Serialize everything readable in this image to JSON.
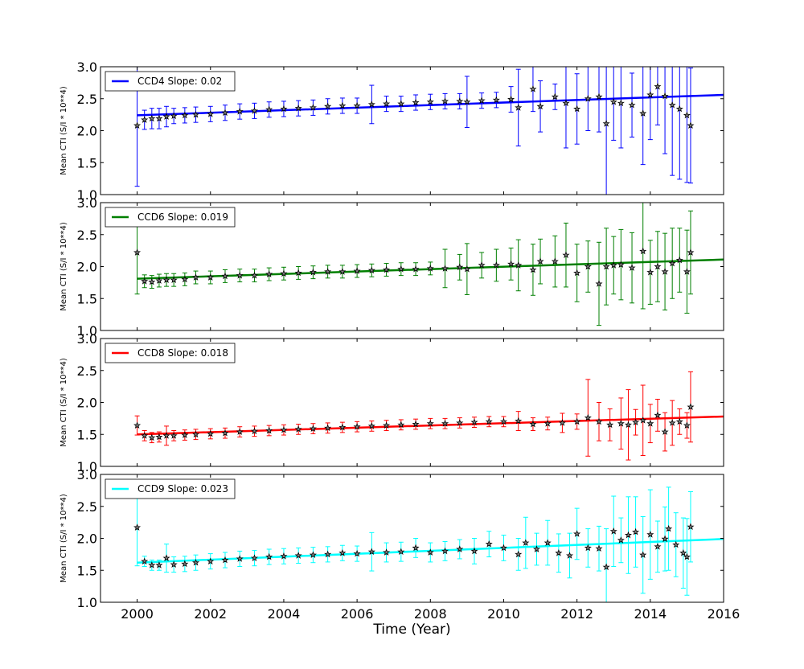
{
  "chart_data": {
    "type": "scatter",
    "x_label": "Time (Year)",
    "x_ticks": [
      2000,
      2002,
      2004,
      2006,
      2008,
      2010,
      2012,
      2014,
      2016
    ],
    "xlim": [
      1999,
      2016
    ],
    "panels": [
      {
        "ylabel": "Mean CTI (S/I * 10**4)",
        "ylim": [
          1.0,
          3.0
        ],
        "y_ticks": [
          "1.0",
          "1.5",
          "2.0",
          "2.5",
          "3.0"
        ],
        "legend": "CCD4 Slope: 0.02",
        "color": "#0000ff",
        "fit": {
          "x": [
            2000.0,
            2016.0
          ],
          "y": [
            2.24,
            2.56
          ]
        },
        "points": [
          [
            2000.0,
            2.08,
            0.95
          ],
          [
            2000.2,
            2.17,
            0.15
          ],
          [
            2000.4,
            2.19,
            0.16
          ],
          [
            2000.6,
            2.19,
            0.16
          ],
          [
            2000.8,
            2.22,
            0.16
          ],
          [
            2001.0,
            2.23,
            0.12
          ],
          [
            2001.3,
            2.24,
            0.12
          ],
          [
            2001.6,
            2.25,
            0.12
          ],
          [
            2002.0,
            2.26,
            0.12
          ],
          [
            2002.4,
            2.28,
            0.12
          ],
          [
            2002.8,
            2.3,
            0.12
          ],
          [
            2003.2,
            2.31,
            0.12
          ],
          [
            2003.6,
            2.33,
            0.12
          ],
          [
            2004.0,
            2.34,
            0.12
          ],
          [
            2004.4,
            2.35,
            0.12
          ],
          [
            2004.8,
            2.36,
            0.12
          ],
          [
            2005.2,
            2.38,
            0.12
          ],
          [
            2005.6,
            2.39,
            0.12
          ],
          [
            2006.0,
            2.39,
            0.12
          ],
          [
            2006.4,
            2.41,
            0.3
          ],
          [
            2006.8,
            2.42,
            0.12
          ],
          [
            2007.2,
            2.42,
            0.12
          ],
          [
            2007.6,
            2.44,
            0.12
          ],
          [
            2008.0,
            2.45,
            0.12
          ],
          [
            2008.4,
            2.46,
            0.12
          ],
          [
            2008.8,
            2.46,
            0.12
          ],
          [
            2009.0,
            2.45,
            0.4
          ],
          [
            2009.4,
            2.47,
            0.12
          ],
          [
            2009.8,
            2.48,
            0.12
          ],
          [
            2010.2,
            2.49,
            0.2
          ],
          [
            2010.4,
            2.36,
            0.6
          ],
          [
            2010.8,
            2.65,
            0.35
          ],
          [
            2011.0,
            2.38,
            0.4
          ],
          [
            2011.4,
            2.53,
            0.2
          ],
          [
            2011.7,
            2.43,
            0.7
          ],
          [
            2012.0,
            2.34,
            0.55
          ],
          [
            2012.3,
            2.5,
            0.5
          ],
          [
            2012.6,
            2.53,
            0.55
          ],
          [
            2012.8,
            2.11,
            1.15
          ],
          [
            2013.0,
            2.45,
            0.6
          ],
          [
            2013.2,
            2.43,
            0.7
          ],
          [
            2013.5,
            2.4,
            0.5
          ],
          [
            2013.8,
            2.27,
            0.8
          ],
          [
            2014.0,
            2.56,
            0.7
          ],
          [
            2014.2,
            2.69,
            0.6
          ],
          [
            2014.4,
            2.54,
            0.9
          ],
          [
            2014.6,
            2.4,
            1.1
          ],
          [
            2014.8,
            2.34,
            1.1
          ],
          [
            2015.0,
            2.24,
            1.05
          ],
          [
            2015.1,
            2.08,
            0.9
          ]
        ]
      },
      {
        "ylabel": "Mean CTI (S/I * 10**4)",
        "ylim": [
          1.0,
          3.0
        ],
        "y_ticks": [
          "1.0",
          "1.5",
          "2.0",
          "2.5",
          "3.0"
        ],
        "legend": "CCD6 Slope: 0.019",
        "color": "#007f00",
        "fit": {
          "x": [
            2000.0,
            2016.0
          ],
          "y": [
            1.81,
            2.11
          ]
        },
        "points": [
          [
            2000.0,
            2.22,
            0.65
          ],
          [
            2000.2,
            1.77,
            0.1
          ],
          [
            2000.4,
            1.76,
            0.1
          ],
          [
            2000.6,
            1.78,
            0.1
          ],
          [
            2000.8,
            1.79,
            0.1
          ],
          [
            2001.0,
            1.79,
            0.1
          ],
          [
            2001.3,
            1.8,
            0.1
          ],
          [
            2001.6,
            1.83,
            0.1
          ],
          [
            2002.0,
            1.83,
            0.1
          ],
          [
            2002.4,
            1.85,
            0.1
          ],
          [
            2002.8,
            1.86,
            0.1
          ],
          [
            2003.2,
            1.86,
            0.1
          ],
          [
            2003.6,
            1.88,
            0.1
          ],
          [
            2004.0,
            1.89,
            0.1
          ],
          [
            2004.4,
            1.9,
            0.1
          ],
          [
            2004.8,
            1.91,
            0.1
          ],
          [
            2005.2,
            1.92,
            0.1
          ],
          [
            2005.6,
            1.92,
            0.1
          ],
          [
            2006.0,
            1.93,
            0.1
          ],
          [
            2006.4,
            1.94,
            0.1
          ],
          [
            2006.8,
            1.95,
            0.1
          ],
          [
            2007.2,
            1.96,
            0.1
          ],
          [
            2007.6,
            1.96,
            0.1
          ],
          [
            2008.0,
            1.97,
            0.1
          ],
          [
            2008.4,
            1.97,
            0.3
          ],
          [
            2008.8,
            1.99,
            0.2
          ],
          [
            2009.0,
            1.96,
            0.4
          ],
          [
            2009.4,
            2.02,
            0.2
          ],
          [
            2009.8,
            2.02,
            0.25
          ],
          [
            2010.2,
            2.04,
            0.25
          ],
          [
            2010.4,
            2.02,
            0.4
          ],
          [
            2010.8,
            1.95,
            0.4
          ],
          [
            2011.0,
            2.08,
            0.35
          ],
          [
            2011.4,
            2.08,
            0.4
          ],
          [
            2011.7,
            2.18,
            0.5
          ],
          [
            2012.0,
            1.9,
            0.45
          ],
          [
            2012.3,
            2.0,
            0.4
          ],
          [
            2012.6,
            1.73,
            0.65
          ],
          [
            2012.8,
            2.0,
            0.6
          ],
          [
            2013.0,
            2.02,
            0.45
          ],
          [
            2013.2,
            2.03,
            0.55
          ],
          [
            2013.5,
            1.98,
            0.55
          ],
          [
            2013.8,
            2.24,
            0.9
          ],
          [
            2014.0,
            1.91,
            0.5
          ],
          [
            2014.2,
            2.0,
            0.55
          ],
          [
            2014.4,
            1.92,
            0.6
          ],
          [
            2014.6,
            2.05,
            0.55
          ],
          [
            2014.8,
            2.1,
            0.5
          ],
          [
            2015.0,
            1.92,
            0.65
          ],
          [
            2015.1,
            2.22,
            0.65
          ]
        ]
      },
      {
        "ylabel": "Mean CTI (S/I * 10**4)",
        "ylim": [
          1.0,
          3.0
        ],
        "y_ticks": [
          "1.0",
          "1.5",
          "2.0",
          "2.5",
          "3.0"
        ],
        "legend": "CCD8 Slope: 0.018",
        "color": "#ff0000",
        "fit": {
          "x": [
            2000.0,
            2016.0
          ],
          "y": [
            1.5,
            1.78
          ]
        },
        "points": [
          [
            2000.0,
            1.64,
            0.15
          ],
          [
            2000.2,
            1.48,
            0.08
          ],
          [
            2000.4,
            1.45,
            0.08
          ],
          [
            2000.6,
            1.46,
            0.08
          ],
          [
            2000.8,
            1.48,
            0.15
          ],
          [
            2001.0,
            1.48,
            0.08
          ],
          [
            2001.3,
            1.49,
            0.08
          ],
          [
            2001.6,
            1.5,
            0.08
          ],
          [
            2002.0,
            1.51,
            0.08
          ],
          [
            2002.4,
            1.52,
            0.08
          ],
          [
            2002.8,
            1.54,
            0.08
          ],
          [
            2003.2,
            1.55,
            0.08
          ],
          [
            2003.6,
            1.56,
            0.08
          ],
          [
            2004.0,
            1.57,
            0.08
          ],
          [
            2004.4,
            1.58,
            0.08
          ],
          [
            2004.8,
            1.59,
            0.08
          ],
          [
            2005.2,
            1.6,
            0.08
          ],
          [
            2005.6,
            1.61,
            0.08
          ],
          [
            2006.0,
            1.62,
            0.08
          ],
          [
            2006.4,
            1.63,
            0.08
          ],
          [
            2006.8,
            1.64,
            0.08
          ],
          [
            2007.2,
            1.65,
            0.08
          ],
          [
            2007.6,
            1.66,
            0.08
          ],
          [
            2008.0,
            1.67,
            0.08
          ],
          [
            2008.4,
            1.67,
            0.08
          ],
          [
            2008.8,
            1.68,
            0.08
          ],
          [
            2009.2,
            1.69,
            0.08
          ],
          [
            2009.6,
            1.7,
            0.08
          ],
          [
            2010.0,
            1.7,
            0.08
          ],
          [
            2010.4,
            1.71,
            0.15
          ],
          [
            2010.8,
            1.66,
            0.1
          ],
          [
            2011.2,
            1.67,
            0.1
          ],
          [
            2011.6,
            1.68,
            0.15
          ],
          [
            2012.0,
            1.7,
            0.12
          ],
          [
            2012.3,
            1.76,
            0.6
          ],
          [
            2012.6,
            1.7,
            0.3
          ],
          [
            2012.9,
            1.65,
            0.25
          ],
          [
            2013.2,
            1.67,
            0.4
          ],
          [
            2013.4,
            1.65,
            0.55
          ],
          [
            2013.6,
            1.69,
            0.2
          ],
          [
            2013.8,
            1.72,
            0.55
          ],
          [
            2014.0,
            1.67,
            0.3
          ],
          [
            2014.2,
            1.8,
            0.25
          ],
          [
            2014.4,
            1.54,
            0.3
          ],
          [
            2014.6,
            1.68,
            0.35
          ],
          [
            2014.8,
            1.7,
            0.2
          ],
          [
            2015.0,
            1.64,
            0.2
          ],
          [
            2015.1,
            1.93,
            0.55
          ]
        ]
      },
      {
        "ylabel": "Mean CTI (S/I * 10**4)",
        "ylim": [
          1.0,
          3.0
        ],
        "y_ticks": [
          "1.0",
          "1.5",
          "2.0",
          "2.5",
          "3.0"
        ],
        "legend": "CCD9 Slope: 0.023",
        "color": "#00ffff",
        "fit": {
          "x": [
            2000.0,
            2016.0
          ],
          "y": [
            1.62,
            1.99
          ]
        },
        "points": [
          [
            2000.0,
            2.17,
            0.6
          ],
          [
            2000.2,
            1.64,
            0.08
          ],
          [
            2000.4,
            1.58,
            0.08
          ],
          [
            2000.6,
            1.58,
            0.08
          ],
          [
            2000.8,
            1.69,
            0.22
          ],
          [
            2001.0,
            1.59,
            0.12
          ],
          [
            2001.3,
            1.6,
            0.12
          ],
          [
            2001.6,
            1.62,
            0.12
          ],
          [
            2002.0,
            1.64,
            0.12
          ],
          [
            2002.4,
            1.66,
            0.12
          ],
          [
            2002.8,
            1.68,
            0.12
          ],
          [
            2003.2,
            1.69,
            0.12
          ],
          [
            2003.6,
            1.71,
            0.12
          ],
          [
            2004.0,
            1.72,
            0.12
          ],
          [
            2004.4,
            1.73,
            0.12
          ],
          [
            2004.8,
            1.74,
            0.12
          ],
          [
            2005.2,
            1.75,
            0.12
          ],
          [
            2005.6,
            1.77,
            0.12
          ],
          [
            2006.0,
            1.76,
            0.12
          ],
          [
            2006.4,
            1.79,
            0.3
          ],
          [
            2006.8,
            1.78,
            0.15
          ],
          [
            2007.2,
            1.79,
            0.15
          ],
          [
            2007.6,
            1.85,
            0.15
          ],
          [
            2008.0,
            1.78,
            0.15
          ],
          [
            2008.4,
            1.8,
            0.15
          ],
          [
            2008.8,
            1.83,
            0.15
          ],
          [
            2009.2,
            1.8,
            0.2
          ],
          [
            2009.6,
            1.91,
            0.2
          ],
          [
            2010.0,
            1.85,
            0.2
          ],
          [
            2010.4,
            1.75,
            0.25
          ],
          [
            2010.6,
            1.93,
            0.4
          ],
          [
            2010.9,
            1.83,
            0.25
          ],
          [
            2011.2,
            1.93,
            0.35
          ],
          [
            2011.5,
            1.77,
            0.3
          ],
          [
            2011.8,
            1.73,
            0.35
          ],
          [
            2012.0,
            2.07,
            0.4
          ],
          [
            2012.3,
            1.85,
            0.3
          ],
          [
            2012.6,
            1.84,
            0.35
          ],
          [
            2012.8,
            1.55,
            0.6
          ],
          [
            2013.0,
            2.11,
            0.55
          ],
          [
            2013.2,
            1.97,
            0.35
          ],
          [
            2013.4,
            2.05,
            0.6
          ],
          [
            2013.6,
            2.1,
            0.55
          ],
          [
            2013.8,
            1.74,
            0.6
          ],
          [
            2014.0,
            2.06,
            0.7
          ],
          [
            2014.2,
            1.87,
            0.4
          ],
          [
            2014.4,
            1.99,
            0.5
          ],
          [
            2014.5,
            2.15,
            0.65
          ],
          [
            2014.7,
            1.9,
            0.5
          ],
          [
            2014.9,
            1.77,
            0.55
          ],
          [
            2015.0,
            1.71,
            0.6
          ],
          [
            2015.1,
            2.18,
            0.55
          ]
        ]
      }
    ]
  }
}
